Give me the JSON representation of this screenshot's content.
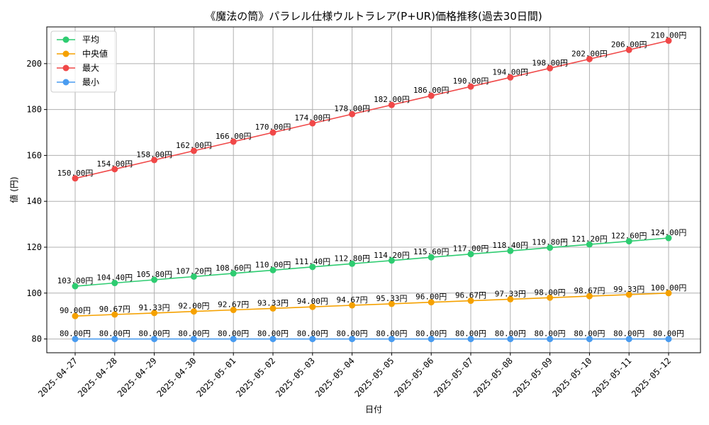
{
  "chart_data": {
    "type": "line",
    "title": "《魔法の筒》パラレル仕様ウルトラレア(P+UR)価格推移(過去30日間)",
    "xlabel": "日付",
    "ylabel": "値 (円)",
    "ylim": [
      74,
      216
    ],
    "yticks": [
      80,
      100,
      120,
      140,
      160,
      180,
      200
    ],
    "grid": true,
    "legend_position": "top-left",
    "value_suffix": "円",
    "categories": [
      "2025-04-27",
      "2025-04-28",
      "2025-04-29",
      "2025-04-30",
      "2025-05-01",
      "2025-05-02",
      "2025-05-03",
      "2025-05-04",
      "2025-05-05",
      "2025-05-06",
      "2025-05-07",
      "2025-05-08",
      "2025-05-09",
      "2025-05-10",
      "2025-05-11",
      "2025-05-12"
    ],
    "series": [
      {
        "name": "平均",
        "color": "#2ecc71",
        "values": [
          103.0,
          104.4,
          105.8,
          107.2,
          108.6,
          110.0,
          111.4,
          112.8,
          114.2,
          115.6,
          117.0,
          118.4,
          119.8,
          121.2,
          122.6,
          124.0
        ]
      },
      {
        "name": "中央値",
        "color": "#f5a100",
        "values": [
          90.0,
          90.67,
          91.33,
          92.0,
          92.67,
          93.33,
          94.0,
          94.67,
          95.33,
          96.0,
          96.67,
          97.33,
          98.0,
          98.67,
          99.33,
          100.0
        ]
      },
      {
        "name": "最大",
        "color": "#f04848",
        "values": [
          150.0,
          154.0,
          158.0,
          162.0,
          166.0,
          170.0,
          174.0,
          178.0,
          182.0,
          186.0,
          190.0,
          194.0,
          198.0,
          202.0,
          206.0,
          210.0
        ]
      },
      {
        "name": "最小",
        "color": "#4a9cf0",
        "values": [
          80.0,
          80.0,
          80.0,
          80.0,
          80.0,
          80.0,
          80.0,
          80.0,
          80.0,
          80.0,
          80.0,
          80.0,
          80.0,
          80.0,
          80.0,
          80.0
        ]
      }
    ]
  }
}
